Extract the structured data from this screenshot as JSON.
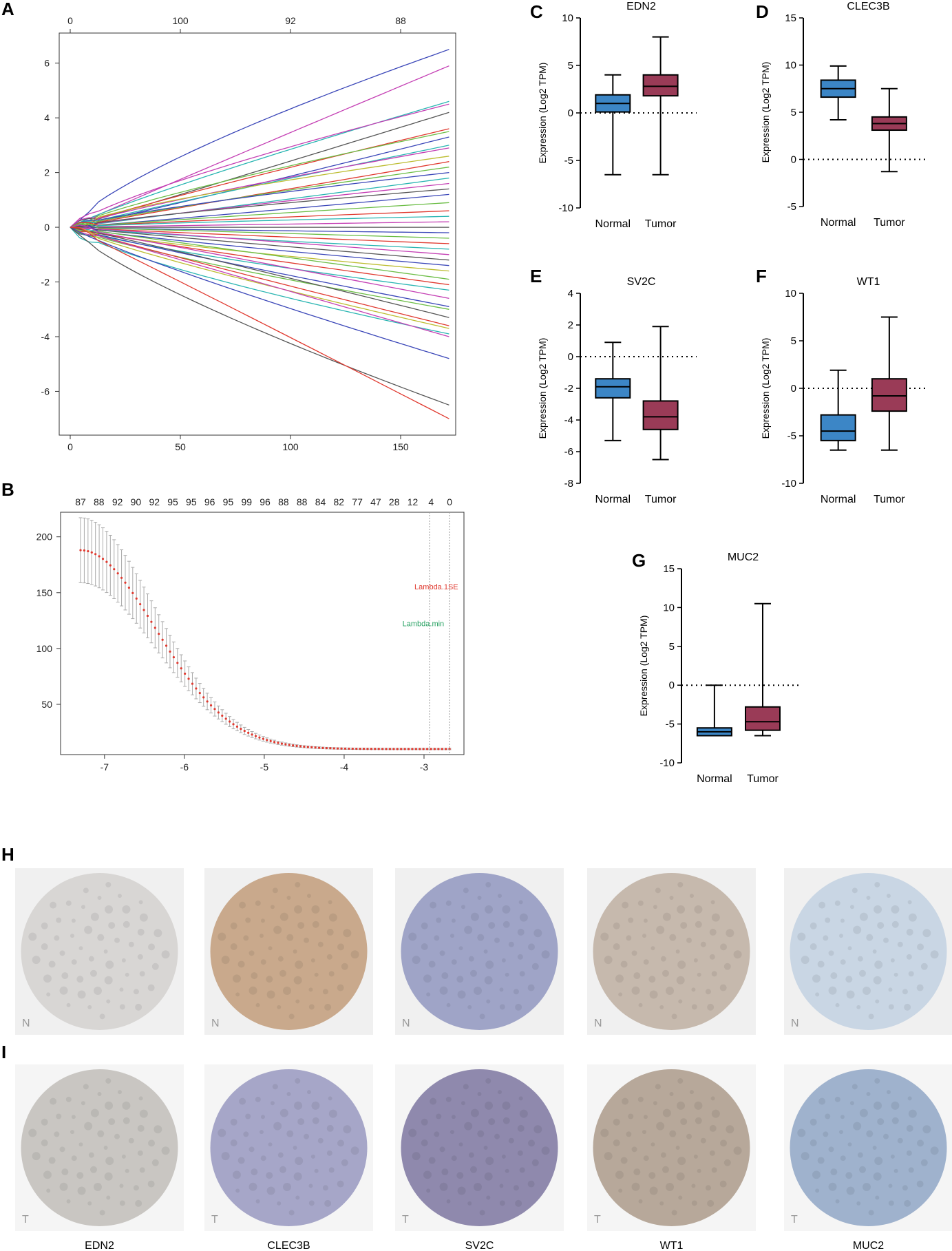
{
  "panel_labels": {
    "A": "A",
    "B": "B",
    "C": "C",
    "D": "D",
    "E": "E",
    "F": "F",
    "G": "G",
    "H": "H",
    "I": "I"
  },
  "colors": {
    "normal_box": "#3c86c6",
    "tumor_box": "#9a3b57",
    "lasso_red": "#e0392f",
    "lambda_min": "#25a060"
  },
  "chart_data": [
    {
      "id": "A",
      "type": "line",
      "title": "",
      "xlabel": "",
      "ylabel": "",
      "xlim": [
        -5,
        175
      ],
      "ylim": [
        -7.6,
        7.1
      ],
      "x_ticks": [
        0,
        50,
        100,
        150
      ],
      "y_ticks": [
        -6,
        -4,
        -2,
        0,
        2,
        4,
        6
      ],
      "top_ticks": [
        {
          "x": 0,
          "label": "0"
        },
        {
          "x": 50,
          "label": "100"
        },
        {
          "x": 100,
          "label": "92"
        },
        {
          "x": 150,
          "label": "88"
        }
      ],
      "x_end": 172,
      "series": [
        {
          "end": 6.5,
          "color": "#3a46b8"
        },
        {
          "end": 5.9,
          "color": "#c43fb4"
        },
        {
          "end": 4.6,
          "color": "#29b5b2"
        },
        {
          "end": 4.5,
          "color": "#c43fb4"
        },
        {
          "end": 4.2,
          "color": "#555555"
        },
        {
          "end": 3.6,
          "color": "#e0392f"
        },
        {
          "end": 3.5,
          "color": "#6bbd45"
        },
        {
          "end": 3.3,
          "color": "#3a46b8"
        },
        {
          "end": 3.0,
          "color": "#29b5b2"
        },
        {
          "end": 2.9,
          "color": "#c43fb4"
        },
        {
          "end": 2.6,
          "color": "#bcbc2f"
        },
        {
          "end": 2.4,
          "color": "#e0392f"
        },
        {
          "end": 2.2,
          "color": "#6bbd45"
        },
        {
          "end": 2.0,
          "color": "#3a46b8"
        },
        {
          "end": 1.8,
          "color": "#29b5b2"
        },
        {
          "end": 1.6,
          "color": "#c43fb4"
        },
        {
          "end": 1.4,
          "color": "#555555"
        },
        {
          "end": 1.2,
          "color": "#3a46b8"
        },
        {
          "end": 0.9,
          "color": "#6bbd45"
        },
        {
          "end": 0.6,
          "color": "#e0392f"
        },
        {
          "end": 0.4,
          "color": "#29b5b2"
        },
        {
          "end": 0.2,
          "color": "#c43fb4"
        },
        {
          "end": 0.0,
          "color": "#555555"
        },
        {
          "end": -0.2,
          "color": "#3a46b8"
        },
        {
          "end": -0.4,
          "color": "#6bbd45"
        },
        {
          "end": -0.6,
          "color": "#e0392f"
        },
        {
          "end": -0.8,
          "color": "#29b5b2"
        },
        {
          "end": -1.0,
          "color": "#c43fb4"
        },
        {
          "end": -1.2,
          "color": "#555555"
        },
        {
          "end": -1.4,
          "color": "#3a46b8"
        },
        {
          "end": -1.6,
          "color": "#bcbc2f"
        },
        {
          "end": -1.9,
          "color": "#6bbd45"
        },
        {
          "end": -2.1,
          "color": "#e0392f"
        },
        {
          "end": -2.3,
          "color": "#29b5b2"
        },
        {
          "end": -2.6,
          "color": "#c43fb4"
        },
        {
          "end": -2.9,
          "color": "#3a46b8"
        },
        {
          "end": -3.0,
          "color": "#6bbd45"
        },
        {
          "end": -3.3,
          "color": "#555555"
        },
        {
          "end": -3.6,
          "color": "#e0392f"
        },
        {
          "end": -3.7,
          "color": "#bcbc2f"
        },
        {
          "end": -3.9,
          "color": "#29b5b2"
        },
        {
          "end": -4.0,
          "color": "#c43fb4"
        },
        {
          "end": -4.8,
          "color": "#3a46b8"
        },
        {
          "end": -6.5,
          "color": "#555555"
        },
        {
          "end": -7.0,
          "color": "#e0392f"
        }
      ]
    },
    {
      "id": "B",
      "type": "errorbar",
      "xlim": [
        -7.55,
        -2.5
      ],
      "ylim": [
        5,
        222
      ],
      "x_ticks": [
        -7,
        -6,
        -5,
        -4,
        -3
      ],
      "y_ticks": [
        50,
        100,
        150,
        200
      ],
      "top_labels": [
        "87",
        "88",
        "92",
        "90",
        "92",
        "95",
        "95",
        "96",
        "95",
        "99",
        "96",
        "88",
        "88",
        "84",
        "82",
        "77",
        "47",
        "28",
        "12",
        "4",
        "0"
      ],
      "top_label_range": [
        -7.3,
        -2.68
      ],
      "curve": {
        "x_start": -7.3,
        "x_end": -2.68,
        "y_start": 188,
        "y_floor": 10,
        "decay": 1.25
      },
      "vlines": [
        -2.93,
        -2.68
      ],
      "annotations": [
        {
          "text": "Lambda.1SE",
          "x": -3.12,
          "y": 153,
          "color": "#e0392f"
        },
        {
          "text": "Lambda.min",
          "x": -3.27,
          "y": 120,
          "color": "#25a060"
        }
      ]
    },
    {
      "id": "C",
      "type": "box",
      "title": "EDN2",
      "ylabel": "Expression (Log2 TPM)",
      "ylim": [
        -10,
        10
      ],
      "y_ticks": [
        -10,
        -5,
        0,
        5,
        10
      ],
      "ref_line": 0,
      "categories": [
        "Normal",
        "Tumor"
      ],
      "boxes": [
        {
          "min": -6.5,
          "q1": 0.1,
          "median": 1.0,
          "q3": 1.9,
          "max": 4.0
        },
        {
          "min": -6.5,
          "q1": 1.8,
          "median": 2.8,
          "q3": 4.0,
          "max": 8.0
        }
      ]
    },
    {
      "id": "D",
      "type": "box",
      "title": "CLEC3B",
      "ylabel": "Expression (Log2  TPM)",
      "ylim": [
        -5,
        15
      ],
      "y_ticks": [
        -5,
        0,
        5,
        10,
        15
      ],
      "ref_line": 0,
      "categories": [
        "Normal",
        "Tumor"
      ],
      "boxes": [
        {
          "min": 4.2,
          "q1": 6.6,
          "median": 7.5,
          "q3": 8.4,
          "max": 9.9
        },
        {
          "min": -1.3,
          "q1": 3.1,
          "median": 3.8,
          "q3": 4.5,
          "max": 7.5
        }
      ]
    },
    {
      "id": "E",
      "type": "box",
      "title": "SV2C",
      "ylabel": "Expression (Log2  TPM)",
      "ylim": [
        -8,
        4
      ],
      "y_ticks": [
        -8,
        -6,
        -4,
        -2,
        0,
        2,
        4
      ],
      "ref_line": 0,
      "categories": [
        "Normal",
        "Tumor"
      ],
      "boxes": [
        {
          "min": -5.3,
          "q1": -2.6,
          "median": -1.9,
          "q3": -1.4,
          "max": 0.9
        },
        {
          "min": -6.5,
          "q1": -4.6,
          "median": -3.8,
          "q3": -2.8,
          "max": 1.9
        }
      ]
    },
    {
      "id": "F",
      "type": "box",
      "title": "WT1",
      "ylabel": "Expression (Log2  TPM)",
      "ylim": [
        -10,
        10
      ],
      "y_ticks": [
        -10,
        -5,
        0,
        5,
        10
      ],
      "ref_line": 0,
      "categories": [
        "Normal",
        "Tumor"
      ],
      "boxes": [
        {
          "min": -6.5,
          "q1": -5.5,
          "median": -4.5,
          "q3": -2.8,
          "max": 1.9
        },
        {
          "min": -6.5,
          "q1": -2.4,
          "median": -0.8,
          "q3": 1.0,
          "max": 7.5
        }
      ]
    },
    {
      "id": "G",
      "type": "box",
      "title": "MUC2",
      "ylabel": "Expression (Log2  TPM)",
      "ylim": [
        -10,
        15
      ],
      "y_ticks": [
        -10,
        -5,
        0,
        5,
        10,
        15
      ],
      "ref_line": 0,
      "categories": [
        "Normal",
        "Tumor"
      ],
      "boxes": [
        {
          "min": -6.5,
          "q1": -6.5,
          "median": -6.0,
          "q3": -5.5,
          "max": 0.0
        },
        {
          "min": -6.5,
          "q1": -5.8,
          "median": -4.7,
          "q3": -2.8,
          "max": 10.5
        }
      ]
    }
  ],
  "ihc": {
    "genes": [
      "EDN2",
      "CLEC3B",
      "SV2C",
      "WT1",
      "MUC2"
    ],
    "row_h_letter": "N",
    "row_i_letter": "T",
    "normal_tints": [
      "#d8d6d4",
      "#c9a98c",
      "#9fa4c7",
      "#c6b9ad",
      "#c9d6e4"
    ],
    "tumor_tints": [
      "#c9c6c2",
      "#a6a6c8",
      "#8f89ad",
      "#b7a89a",
      "#9fb2cd"
    ]
  }
}
